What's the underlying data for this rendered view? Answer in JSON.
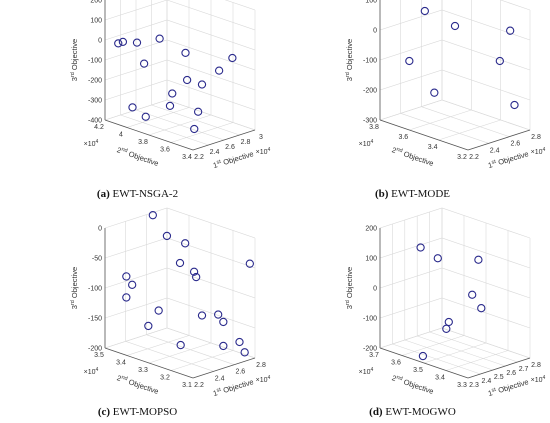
{
  "colors": {
    "marker": "#2a2a8c",
    "axis": "#555555",
    "grid": "#d9d9d9",
    "text": "#333333"
  },
  "chart_data": [
    {
      "type": "scatter",
      "id": "a",
      "caption_letter": "(a)",
      "caption_text": "EWT-NSGA-2",
      "xlabel": "1st Objective",
      "ylabel": "2nd Objective",
      "zlabel": "3rd Objective",
      "x_exponent": "×10^4",
      "y_exponent": "×10^4",
      "xlim": [
        2.2,
        3.0
      ],
      "ylim": [
        3.4,
        4.2
      ],
      "zlim": [
        -400,
        200
      ],
      "xticks": [
        2.2,
        2.4,
        2.6,
        2.8,
        3.0
      ],
      "xtick_labels": [
        "2.2",
        "2.4",
        "2.6",
        "2.8",
        "3"
      ],
      "yticks": [
        3.4,
        3.6,
        3.8,
        4.0,
        4.2
      ],
      "ytick_labels": [
        "3.4",
        "3.6",
        "3.8",
        "4",
        "4.2"
      ],
      "zticks": [
        -400,
        -300,
        -200,
        -100,
        0,
        100,
        200
      ],
      "ztick_labels": [
        "-400",
        "-300",
        "-200",
        "-100",
        "0",
        "100",
        "200"
      ],
      "grid": true,
      "points": [
        {
          "x": 2.3,
          "y": 4.15,
          "z": -20
        },
        {
          "x": 2.36,
          "y": 4.15,
          "z": -20
        },
        {
          "x": 2.4,
          "y": 4.05,
          "z": -10
        },
        {
          "x": 2.35,
          "y": 3.95,
          "z": -90
        },
        {
          "x": 2.55,
          "y": 3.95,
          "z": 10
        },
        {
          "x": 2.6,
          "y": 3.75,
          "z": -30
        },
        {
          "x": 2.85,
          "y": 3.5,
          "z": -40
        },
        {
          "x": 2.75,
          "y": 3.55,
          "z": -100
        },
        {
          "x": 2.6,
          "y": 3.6,
          "z": -160
        },
        {
          "x": 2.5,
          "y": 3.8,
          "z": -230
        },
        {
          "x": 2.55,
          "y": 3.6,
          "z": -290
        },
        {
          "x": 2.55,
          "y": 3.7,
          "z": -150
        },
        {
          "x": 2.4,
          "y": 3.75,
          "z": -270
        },
        {
          "x": 2.2,
          "y": 3.95,
          "z": -290
        },
        {
          "x": 2.3,
          "y": 3.9,
          "z": -340
        },
        {
          "x": 2.5,
          "y": 3.6,
          "z": -370
        }
      ]
    },
    {
      "type": "scatter",
      "id": "b",
      "caption_letter": "(b)",
      "caption_text": "EWT-MODE",
      "xlabel": "1st Objective",
      "ylabel": "2nd Objective",
      "zlabel": "3rd Objective",
      "x_exponent": "×10^4",
      "y_exponent": "×10^4",
      "xlim": [
        2.2,
        2.8
      ],
      "ylim": [
        3.2,
        3.8
      ],
      "zlim": [
        -300,
        100
      ],
      "xticks": [
        2.2,
        2.4,
        2.6,
        2.8
      ],
      "xtick_labels": [
        "2.2",
        "2.4",
        "2.6",
        "2.8"
      ],
      "yticks": [
        3.2,
        3.4,
        3.6,
        3.8
      ],
      "ytick_labels": [
        "3.2",
        "3.4",
        "3.6",
        "3.8"
      ],
      "zticks": [
        -300,
        -200,
        -100,
        0,
        100
      ],
      "ztick_labels": [
        "-300",
        "-200",
        "-100",
        "0",
        "100"
      ],
      "grid": true,
      "points": [
        {
          "x": 2.35,
          "y": 3.6,
          "z": 80
        },
        {
          "x": 2.5,
          "y": 3.5,
          "z": 30
        },
        {
          "x": 2.2,
          "y": 3.6,
          "z": -70
        },
        {
          "x": 2.75,
          "y": 3.3,
          "z": 20
        },
        {
          "x": 2.65,
          "y": 3.3,
          "z": -70
        },
        {
          "x": 2.3,
          "y": 3.5,
          "z": -170
        },
        {
          "x": 2.65,
          "y": 3.2,
          "z": -200
        }
      ]
    },
    {
      "type": "scatter",
      "id": "c",
      "caption_letter": "(c)",
      "caption_text": "EWT-MOPSO",
      "xlabel": "1st Objective",
      "ylabel": "2nd Objective",
      "zlabel": "3rd Objective",
      "x_exponent": "×10^4",
      "y_exponent": "×10^4",
      "xlim": [
        2.2,
        2.8
      ],
      "ylim": [
        3.1,
        3.5
      ],
      "zlim": [
        -200,
        0
      ],
      "xticks": [
        2.2,
        2.4,
        2.6,
        2.8
      ],
      "xtick_labels": [
        "2.2",
        "2.4",
        "2.6",
        "2.8"
      ],
      "yticks": [
        3.1,
        3.2,
        3.3,
        3.4,
        3.5
      ],
      "ytick_labels": [
        "3.1",
        "3.2",
        "3.3",
        "3.4",
        "3.5"
      ],
      "zticks": [
        -200,
        -150,
        -100,
        -50,
        0
      ],
      "ztick_labels": [
        "-200",
        "-150",
        "-100",
        "-50",
        "0"
      ],
      "grid": true,
      "points": [
        {
          "x": 2.45,
          "y": 3.4,
          "z": 20
        },
        {
          "x": 2.48,
          "y": 3.35,
          "z": -10
        },
        {
          "x": 2.55,
          "y": 3.3,
          "z": -20
        },
        {
          "x": 2.75,
          "y": 3.1,
          "z": -40
        },
        {
          "x": 2.5,
          "y": 3.3,
          "z": -50
        },
        {
          "x": 2.55,
          "y": 3.25,
          "z": -70
        },
        {
          "x": 2.53,
          "y": 3.25,
          "z": -60
        },
        {
          "x": 2.3,
          "y": 3.45,
          "z": -80
        },
        {
          "x": 2.25,
          "y": 3.4,
          "z": -85
        },
        {
          "x": 2.3,
          "y": 3.45,
          "z": -115
        },
        {
          "x": 2.5,
          "y": 3.2,
          "z": -125
        },
        {
          "x": 2.55,
          "y": 3.15,
          "z": -120
        },
        {
          "x": 2.6,
          "y": 3.15,
          "z": -135
        },
        {
          "x": 2.4,
          "y": 3.35,
          "z": -130
        },
        {
          "x": 2.65,
          "y": 3.1,
          "z": -165
        },
        {
          "x": 2.6,
          "y": 3.15,
          "z": -175
        },
        {
          "x": 2.7,
          "y": 3.1,
          "z": -185
        },
        {
          "x": 2.4,
          "y": 3.25,
          "z": -175
        },
        {
          "x": 2.3,
          "y": 3.35,
          "z": -150
        }
      ]
    },
    {
      "type": "scatter",
      "id": "d",
      "caption_letter": "(d)",
      "caption_text": "EWT-MOGWO",
      "xlabel": "1st Objective",
      "ylabel": "2nd Objective",
      "zlabel": "3rd Objective",
      "x_exponent": "×10^4",
      "y_exponent": "×10^4",
      "xlim": [
        2.3,
        2.8
      ],
      "ylim": [
        3.3,
        3.7
      ],
      "zlim": [
        -200,
        200
      ],
      "xticks": [
        2.3,
        2.4,
        2.5,
        2.6,
        2.7,
        2.8
      ],
      "xtick_labels": [
        "2.3",
        "2.4",
        "2.5",
        "2.6",
        "2.7",
        "2.8"
      ],
      "yticks": [
        3.3,
        3.4,
        3.5,
        3.6,
        3.7
      ],
      "ytick_labels": [
        "3.3",
        "3.4",
        "3.5",
        "3.6",
        "3.7"
      ],
      "zticks": [
        -200,
        -100,
        0,
        100,
        200
      ],
      "ztick_labels": [
        "-200",
        "-100",
        "0",
        "100",
        "200"
      ],
      "grid": true,
      "points": [
        {
          "x": 2.45,
          "y": 3.6,
          "z": 140
        },
        {
          "x": 2.5,
          "y": 3.55,
          "z": 110
        },
        {
          "x": 2.65,
          "y": 3.45,
          "z": 110
        },
        {
          "x": 2.6,
          "y": 3.45,
          "z": 0
        },
        {
          "x": 2.62,
          "y": 3.42,
          "z": -40
        },
        {
          "x": 2.5,
          "y": 3.5,
          "z": -90
        },
        {
          "x": 2.48,
          "y": 3.5,
          "z": -110
        },
        {
          "x": 2.38,
          "y": 3.55,
          "z": -200
        }
      ]
    }
  ]
}
